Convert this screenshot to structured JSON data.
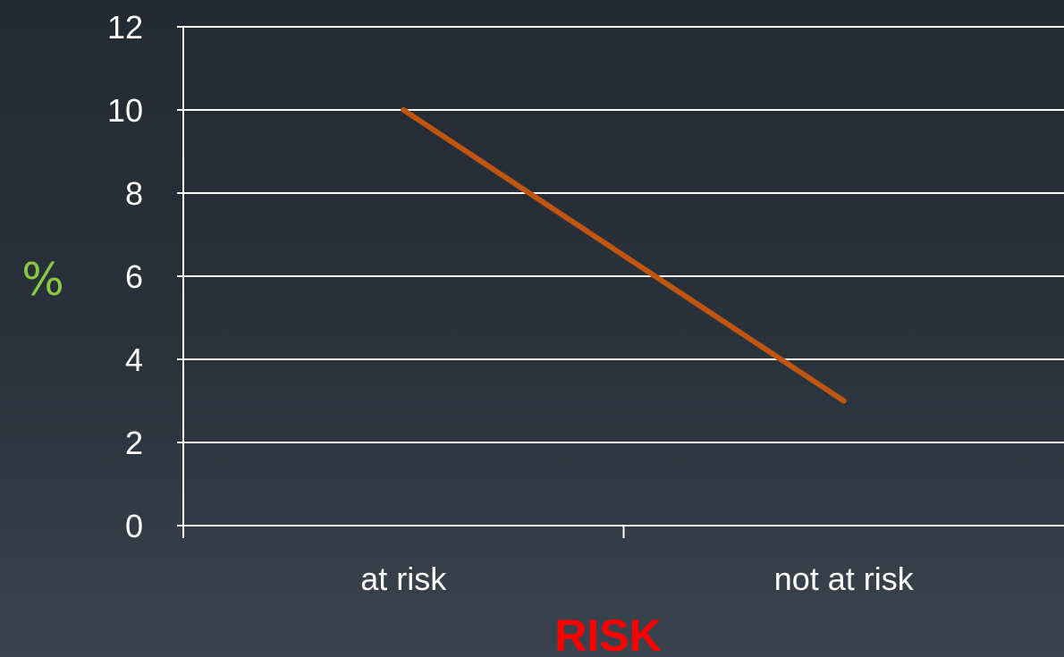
{
  "chart_data": {
    "type": "line",
    "categories": [
      "at risk",
      "not at risk"
    ],
    "series": [
      {
        "values": [
          10,
          3
        ]
      }
    ],
    "xlabel": "RISK",
    "ylabel": "%",
    "ylim": [
      0,
      12
    ],
    "yticks": [
      0,
      2,
      4,
      6,
      8,
      10,
      12
    ],
    "grid": true,
    "legend": "none"
  },
  "colors": {
    "line": "#c0550f",
    "grid": "#ffffff",
    "axis": "#ffffff",
    "tick_text": "#ffffff",
    "ylabel": "#8ac943",
    "xlabel": "#ff0000"
  }
}
